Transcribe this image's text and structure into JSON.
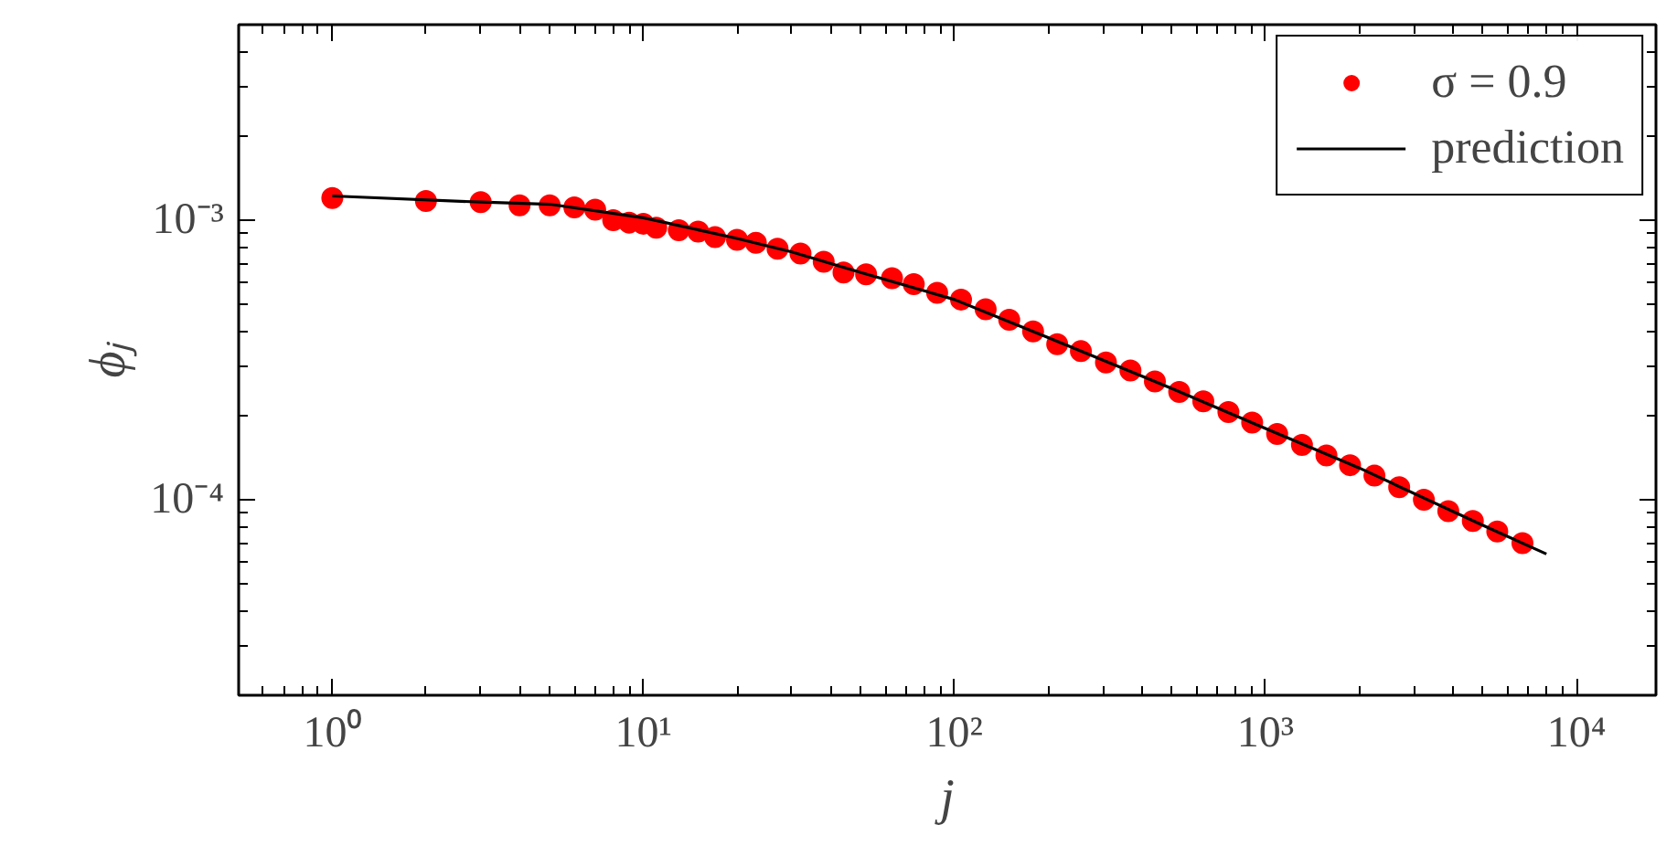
{
  "chart_data": {
    "type": "scatter",
    "xlabel": "j",
    "ylabel": "ϕⱼ",
    "log": "xy",
    "grid": false,
    "legend": "top right",
    "xlim": [
      0.5,
      18000
    ],
    "ylim": [
      2e-05,
      0.005
    ],
    "xticks": [
      {
        "value": 1,
        "label": "10⁰"
      },
      {
        "value": 10,
        "label": "10¹"
      },
      {
        "value": 100,
        "label": "10²"
      },
      {
        "value": 1000,
        "label": "10³"
      },
      {
        "value": 10000,
        "label": "10⁴"
      },
      {
        "value": 0.6,
        "label": null
      },
      {
        "value": 0.7,
        "label": null
      },
      {
        "value": 0.8,
        "label": null
      },
      {
        "value": 0.9,
        "label": null
      },
      {
        "value": 2,
        "label": null
      },
      {
        "value": 3,
        "label": null
      },
      {
        "value": 4,
        "label": null
      },
      {
        "value": 5,
        "label": null
      },
      {
        "value": 6,
        "label": null
      },
      {
        "value": 7,
        "label": null
      },
      {
        "value": 8,
        "label": null
      },
      {
        "value": 9,
        "label": null
      },
      {
        "value": 20,
        "label": null
      },
      {
        "value": 30,
        "label": null
      },
      {
        "value": 40,
        "label": null
      },
      {
        "value": 50,
        "label": null
      },
      {
        "value": 60,
        "label": null
      },
      {
        "value": 70,
        "label": null
      },
      {
        "value": 80,
        "label": null
      },
      {
        "value": 90,
        "label": null
      },
      {
        "value": 200,
        "label": null
      },
      {
        "value": 300,
        "label": null
      },
      {
        "value": 400,
        "label": null
      },
      {
        "value": 500,
        "label": null
      },
      {
        "value": 600,
        "label": null
      },
      {
        "value": 700,
        "label": null
      },
      {
        "value": 800,
        "label": null
      },
      {
        "value": 900,
        "label": null
      },
      {
        "value": 2000,
        "label": null
      },
      {
        "value": 3000,
        "label": null
      },
      {
        "value": 4000,
        "label": null
      },
      {
        "value": 5000,
        "label": null
      },
      {
        "value": 6000,
        "label": null
      },
      {
        "value": 7000,
        "label": null
      },
      {
        "value": 8000,
        "label": null
      },
      {
        "value": 9000,
        "label": null
      }
    ],
    "yticks": [
      {
        "value": 0.001,
        "label": "10⁻³"
      },
      {
        "value": 0.0001,
        "label": "10⁻⁴"
      },
      {
        "value": 3e-05,
        "label": null
      },
      {
        "value": 4e-05,
        "label": null
      },
      {
        "value": 5e-05,
        "label": null
      },
      {
        "value": 6e-05,
        "label": null
      },
      {
        "value": 7e-05,
        "label": null
      },
      {
        "value": 8e-05,
        "label": null
      },
      {
        "value": 9e-05,
        "label": null
      },
      {
        "value": 0.0002,
        "label": null
      },
      {
        "value": 0.0003,
        "label": null
      },
      {
        "value": 0.0004,
        "label": null
      },
      {
        "value": 0.0005,
        "label": null
      },
      {
        "value": 0.0006,
        "label": null
      },
      {
        "value": 0.0007,
        "label": null
      },
      {
        "value": 0.0008,
        "label": null
      },
      {
        "value": 0.0009,
        "label": null
      },
      {
        "value": 0.002,
        "label": null
      },
      {
        "value": 0.003,
        "label": null
      },
      {
        "value": 0.004,
        "label": null
      }
    ],
    "series": [
      {
        "name": "σ = 0.9",
        "marker": "circle",
        "color": "#ff0000",
        "x": [
          1,
          2,
          3,
          4,
          5,
          6,
          7,
          8,
          9,
          10,
          11,
          13,
          15,
          17,
          20,
          23,
          27,
          32,
          38,
          44,
          52,
          63,
          74,
          88,
          105,
          126,
          150,
          179,
          214,
          255,
          307,
          368,
          441,
          528,
          631,
          760,
          906,
          1090,
          1310,
          1570,
          1870,
          2240,
          2690,
          3230,
          3870,
          4640,
          5560,
          6700
        ],
        "values": [
          0.0012,
          0.00117,
          0.00116,
          0.00113,
          0.00113,
          0.00111,
          0.00109,
          0.001,
          0.00098,
          0.00097,
          0.00094,
          0.00092,
          0.00091,
          0.00087,
          0.00085,
          0.00083,
          0.00079,
          0.00076,
          0.00071,
          0.00065,
          0.00064,
          0.00062,
          0.00059,
          0.00055,
          0.00052,
          0.00048,
          0.00044,
          0.0004,
          0.00036,
          0.00034,
          0.00031,
          0.00029,
          0.000265,
          0.000243,
          0.000225,
          0.000206,
          0.000189,
          0.000172,
          0.000157,
          0.000144,
          0.000133,
          0.000122,
          0.000111,
          0.0001,
          9.1e-05,
          8.4e-05,
          7.7e-05,
          7e-05
        ]
      },
      {
        "name": "prediction",
        "type": "line",
        "color": "#000000",
        "line_style": "solid",
        "x": [
          1,
          3,
          5,
          10,
          20,
          30,
          50,
          100,
          200,
          500,
          1000,
          2000,
          5000,
          8000
        ],
        "values": [
          0.00122,
          0.00116,
          0.00114,
          0.00102,
          0.00086,
          0.00077,
          0.00065,
          0.00052,
          0.00038,
          0.00025,
          0.00018,
          0.00013,
          8.1e-05,
          6.4e-05
        ]
      }
    ]
  }
}
